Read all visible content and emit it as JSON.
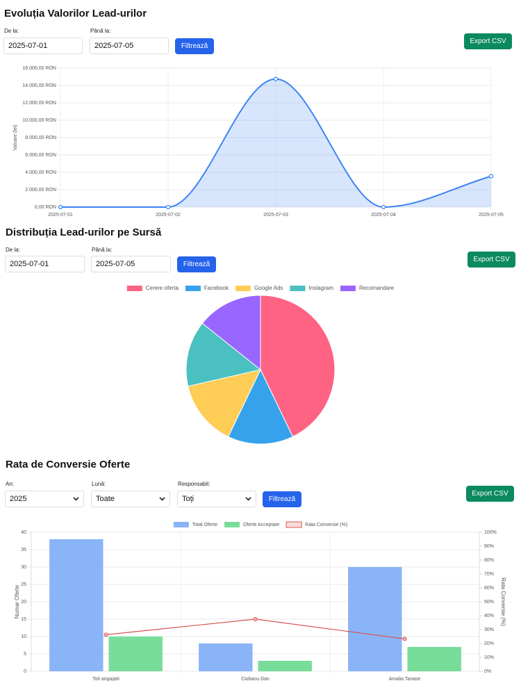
{
  "sections": [
    {
      "title": "Evoluția Valorilor Lead-urilor",
      "filters": [
        {
          "label": "De la:",
          "value": "2025-07-01"
        },
        {
          "label": "Până la:",
          "value": "2025-07-05"
        }
      ],
      "filter_button": "Filtrează",
      "export_button": "Export CSV"
    },
    {
      "title": "Distribuția Lead-urilor pe Sursă",
      "filters": [
        {
          "label": "De la:",
          "value": "2025-07-01"
        },
        {
          "label": "Până la:",
          "value": "2025-07-05"
        }
      ],
      "filter_button": "Filtrează",
      "export_button": "Export CSV"
    },
    {
      "title": "Rata de Conversie Oferte",
      "filters": [
        {
          "label": "An:",
          "value": "2025"
        },
        {
          "label": "Lună:",
          "value": "Toate"
        },
        {
          "label": "Responsabil:",
          "value": "Toți"
        }
      ],
      "filter_button": "Filtrează",
      "export_button": "Export CSV"
    }
  ],
  "chart_data": [
    {
      "type": "line",
      "y_label": "Valoare (lei)",
      "categories": [
        "2025-07-01",
        "2025-07-02",
        "2025-07-03",
        "2025-07-04",
        "2025-07-05"
      ],
      "series": [
        {
          "name": "Valoare",
          "color": "#3b82f6",
          "values": [
            0,
            0,
            14750,
            0,
            3550
          ]
        }
      ],
      "ylim": [
        0,
        16000
      ],
      "yticks": [
        {
          "value": 0,
          "label": "0,00 RON"
        },
        {
          "value": 2000,
          "label": "2.000,00 RON"
        },
        {
          "value": 4000,
          "label": "4.000,00 RON"
        },
        {
          "value": 6000,
          "label": "6.000,00 RON"
        },
        {
          "value": 8000,
          "label": "8.000,00 RON"
        },
        {
          "value": 10000,
          "label": "10.000,00 RON"
        },
        {
          "value": 12000,
          "label": "12.000,00 RON"
        },
        {
          "value": 14000,
          "label": "14.000,00 RON"
        },
        {
          "value": 16000,
          "label": "16.000,00 RON"
        }
      ],
      "grid": true
    },
    {
      "type": "pie",
      "categories": [
        "Cerere oferta",
        "Facebook",
        "Google Ads",
        "Instagram",
        "Recomandare"
      ],
      "values": [
        6,
        2,
        2,
        2,
        2
      ],
      "colors": [
        "#ff6384",
        "#36a2eb",
        "#ffcd56",
        "#4bc0c0",
        "#9966ff"
      ],
      "legend": "top"
    },
    {
      "type": "bar",
      "y_label": "Numar Oferte",
      "y2_label": "Rata Conversie (%)",
      "categories": [
        "Toti angajatii",
        "Ciobanu Dan",
        "Amalia Tanase"
      ],
      "series": [
        {
          "name": "Total Oferte",
          "color": "#8ab4f8",
          "values": [
            38,
            8,
            30
          ]
        },
        {
          "name": "Oferte Acceptate",
          "color": "#77dd99",
          "values": [
            10,
            3,
            7
          ]
        },
        {
          "name": "Rata Conversie (%)",
          "color": "#d9534f",
          "type": "line",
          "axis": "y2",
          "values": [
            26.3,
            37.5,
            23.3
          ]
        }
      ],
      "ylim": [
        0,
        40
      ],
      "yticks": [
        0,
        5,
        10,
        15,
        20,
        25,
        30,
        35,
        40
      ],
      "y2lim": [
        0,
        100
      ],
      "y2ticks": [
        {
          "value": 0,
          "label": "0%"
        },
        {
          "value": 10,
          "label": "10%"
        },
        {
          "value": 20,
          "label": "20%"
        },
        {
          "value": 30,
          "label": "30%"
        },
        {
          "value": 40,
          "label": "40%"
        },
        {
          "value": 50,
          "label": "50%"
        },
        {
          "value": 60,
          "label": "60%"
        },
        {
          "value": 70,
          "label": "70%"
        },
        {
          "value": 80,
          "label": "80%"
        },
        {
          "value": 90,
          "label": "90%"
        },
        {
          "value": 100,
          "label": "100%"
        }
      ],
      "grid": true,
      "legend": "top"
    }
  ]
}
